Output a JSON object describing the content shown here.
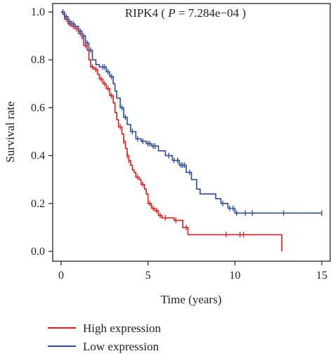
{
  "chart_data": {
    "type": "line",
    "subtype": "kaplan-meier",
    "xlabel": "Time (years)",
    "ylabel": "Survival rate",
    "xlim": [
      0,
      15
    ],
    "ylim": [
      0,
      1.0
    ],
    "x_ticks": [
      "0",
      "5",
      "10",
      "15"
    ],
    "y_ticks": [
      "0.0",
      "0.2",
      "0.4",
      "0.6",
      "0.8",
      "1.0"
    ],
    "annotation": {
      "gene": "RIPK4",
      "p_label": "P",
      "p_value": "7.284e−04"
    },
    "legend_position": "bottom-left",
    "series": [
      {
        "name": "High expression",
        "color": "#e41a1c",
        "steps": [
          [
            0,
            1.0
          ],
          [
            0.1,
            0.99
          ],
          [
            0.2,
            0.97
          ],
          [
            0.4,
            0.95
          ],
          [
            0.6,
            0.94
          ],
          [
            0.8,
            0.93
          ],
          [
            1.0,
            0.91
          ],
          [
            1.2,
            0.89
          ],
          [
            1.3,
            0.86
          ],
          [
            1.5,
            0.84
          ],
          [
            1.6,
            0.8
          ],
          [
            1.7,
            0.77
          ],
          [
            1.9,
            0.76
          ],
          [
            2.1,
            0.74
          ],
          [
            2.2,
            0.72
          ],
          [
            2.4,
            0.7
          ],
          [
            2.6,
            0.68
          ],
          [
            2.8,
            0.65
          ],
          [
            3.0,
            0.62
          ],
          [
            3.1,
            0.58
          ],
          [
            3.2,
            0.55
          ],
          [
            3.3,
            0.52
          ],
          [
            3.5,
            0.49
          ],
          [
            3.6,
            0.46
          ],
          [
            3.7,
            0.43
          ],
          [
            3.8,
            0.4
          ],
          [
            3.9,
            0.38
          ],
          [
            4.0,
            0.36
          ],
          [
            4.1,
            0.34
          ],
          [
            4.2,
            0.33
          ],
          [
            4.3,
            0.31
          ],
          [
            4.5,
            0.3
          ],
          [
            4.6,
            0.28
          ],
          [
            4.8,
            0.26
          ],
          [
            4.9,
            0.24
          ],
          [
            5.0,
            0.2
          ],
          [
            5.2,
            0.18
          ],
          [
            5.4,
            0.17
          ],
          [
            5.6,
            0.15
          ],
          [
            5.8,
            0.14
          ],
          [
            6.5,
            0.13
          ],
          [
            7.0,
            0.1
          ],
          [
            7.3,
            0.07
          ],
          [
            12.7,
            0.07
          ]
        ],
        "end": [
          12.7,
          0.0
        ],
        "censor_times": [
          0.3,
          0.5,
          0.7,
          0.9,
          1.1,
          1.4,
          1.8,
          2.0,
          2.3,
          2.5,
          2.7,
          2.9,
          3.4,
          3.6,
          3.8,
          3.9,
          4.4,
          4.7,
          5.1,
          5.3,
          5.5,
          5.7,
          6.0,
          6.6,
          7.2,
          9.5,
          10.3,
          10.5
        ]
      },
      {
        "name": "Low expression",
        "color": "#2b4b9a",
        "steps": [
          [
            0,
            1.0
          ],
          [
            0.2,
            0.98
          ],
          [
            0.4,
            0.96
          ],
          [
            0.6,
            0.95
          ],
          [
            0.8,
            0.94
          ],
          [
            1.0,
            0.92
          ],
          [
            1.2,
            0.9
          ],
          [
            1.4,
            0.87
          ],
          [
            1.6,
            0.84
          ],
          [
            1.8,
            0.8
          ],
          [
            2.0,
            0.78
          ],
          [
            2.2,
            0.77
          ],
          [
            2.6,
            0.75
          ],
          [
            2.8,
            0.73
          ],
          [
            3.0,
            0.7
          ],
          [
            3.1,
            0.67
          ],
          [
            3.2,
            0.64
          ],
          [
            3.4,
            0.6
          ],
          [
            3.6,
            0.56
          ],
          [
            3.8,
            0.53
          ],
          [
            4.0,
            0.5
          ],
          [
            4.3,
            0.47
          ],
          [
            4.6,
            0.46
          ],
          [
            4.9,
            0.45
          ],
          [
            5.2,
            0.44
          ],
          [
            5.6,
            0.42
          ],
          [
            6.0,
            0.4
          ],
          [
            6.4,
            0.38
          ],
          [
            6.8,
            0.36
          ],
          [
            7.2,
            0.33
          ],
          [
            7.5,
            0.3
          ],
          [
            7.8,
            0.26
          ],
          [
            8.0,
            0.24
          ],
          [
            8.9,
            0.22
          ],
          [
            9.2,
            0.2
          ],
          [
            9.6,
            0.18
          ],
          [
            10.0,
            0.16
          ],
          [
            15.0,
            0.16
          ]
        ],
        "censor_times": [
          0.1,
          0.3,
          0.5,
          0.7,
          1.1,
          1.3,
          1.5,
          1.7,
          2.4,
          2.5,
          2.7,
          2.9,
          3.5,
          3.7,
          4.1,
          4.4,
          4.7,
          5.0,
          5.1,
          5.3,
          5.4,
          6.2,
          6.5,
          6.7,
          6.9,
          7.0,
          7.1,
          7.4,
          9.3,
          9.7,
          9.9,
          10.1,
          10.6,
          11.0,
          12.8,
          15.0
        ]
      }
    ]
  }
}
